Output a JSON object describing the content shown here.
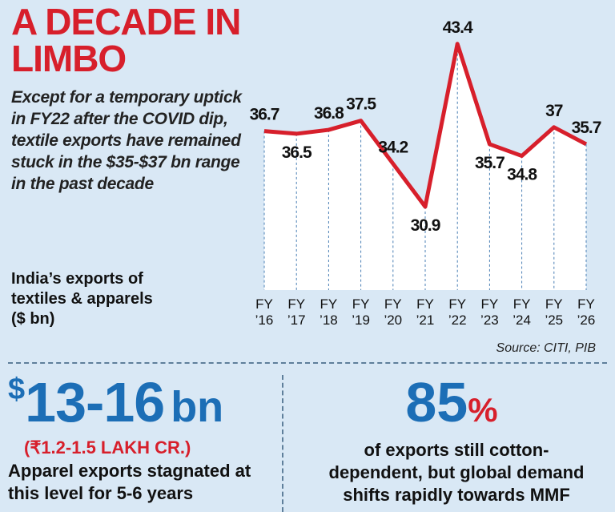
{
  "chart_data": {
    "type": "line",
    "title": "A DECADE IN LIMBO",
    "subtitle": "Except for a temporary uptick in FY22 after the COVID dip, textile exports have remained stuck in the $35-$37 bn range in the past decade",
    "y_label": "India’s exports of textiles & apparels ($ bn)",
    "source": "Source: CITI, PIB",
    "categories": [
      "FY ’16",
      "FY ’17",
      "FY ’18",
      "FY ’19",
      "FY ’20",
      "FY ’21",
      "FY ’22",
      "FY ’23",
      "FY ’24",
      "FY ’25",
      "FY ’26"
    ],
    "values": [
      36.7,
      36.5,
      36.8,
      37.5,
      34.2,
      30.9,
      43.4,
      35.7,
      34.8,
      37,
      35.7
    ],
    "color": "#d71f2b",
    "ylim": [
      24.5,
      44
    ]
  },
  "stats": [
    {
      "prefix": "$",
      "number": "13-16",
      "unit": "bn",
      "sub": "(₹1.2-1.5 LAKH CR.)",
      "text": "Apparel exports stagnated at this level for 5-6 years"
    },
    {
      "number": "85",
      "unit": "%",
      "text": "of exports still cotton-dependent, but global demand shifts rapidly towards MMF"
    }
  ]
}
